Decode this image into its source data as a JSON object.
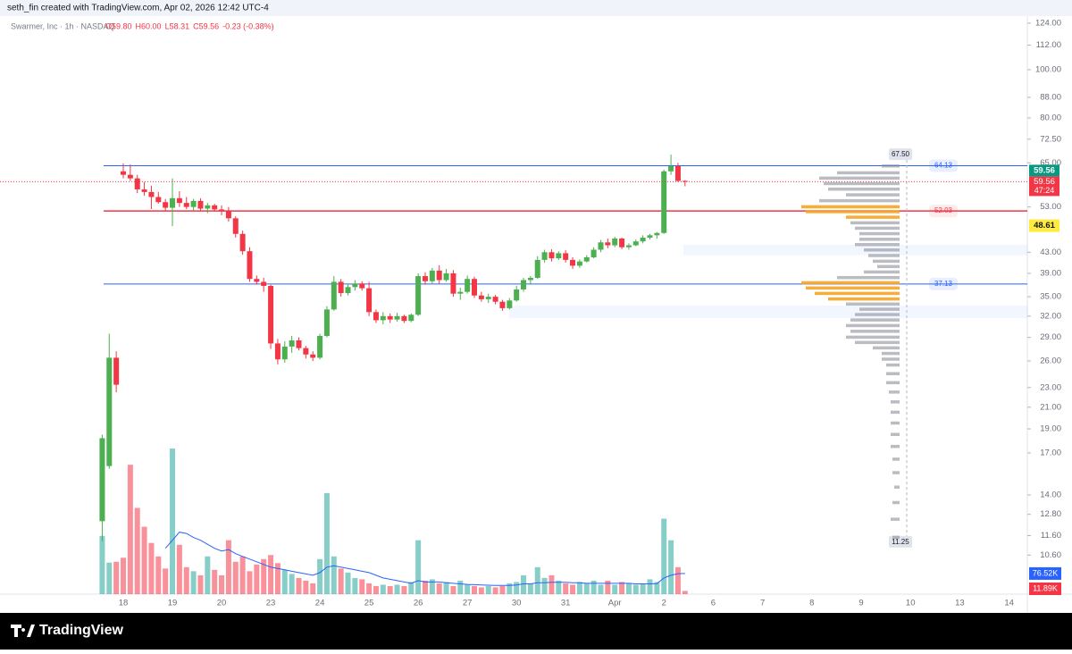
{
  "header": "seth_fin created with TradingView.com, Apr 02, 2026 12:42 UTC-4",
  "footer": "TradingView",
  "chart_data": {
    "type": "candlestick",
    "symbol": "Swarmer, Inc · 1h · NASDAQ",
    "legend_values": [
      "O59.80",
      "H60.00",
      "L58.31",
      "C59.56",
      "-0.23 (-0.38%)"
    ],
    "categories": [
      null,
      null,
      null,
      "18",
      null,
      null,
      null,
      null,
      null,
      null,
      "19",
      null,
      null,
      null,
      null,
      null,
      null,
      "20",
      null,
      null,
      null,
      null,
      null,
      null,
      "23",
      null,
      null,
      null,
      null,
      null,
      null,
      "24",
      null,
      null,
      null,
      null,
      null,
      null,
      "25",
      null,
      null,
      null,
      null,
      null,
      null,
      "26",
      null,
      null,
      null,
      null,
      null,
      null,
      "27",
      null,
      null,
      null,
      null,
      null,
      null,
      "30",
      null,
      null,
      null,
      null,
      null,
      null,
      "31",
      null,
      null,
      null,
      null,
      null,
      null,
      "Apr",
      null,
      null,
      null,
      null,
      null,
      null,
      "2",
      null,
      null,
      null
    ],
    "future_labels": [
      "6",
      "7",
      "8",
      "9",
      "10",
      "13",
      "14"
    ],
    "open": [
      12.4,
      16,
      26.4,
      62.5,
      61.5,
      60.5,
      57.5,
      56.8,
      55.5,
      54.2,
      52.8,
      55.2,
      54,
      53,
      54.5,
      52.6,
      53.4,
      52.4,
      52,
      50.3,
      46.8,
      43.2,
      38,
      37.5,
      36.8,
      28.2,
      26.2,
      27.8,
      28.6,
      27.6,
      26.8,
      26.4,
      29.2,
      33,
      37.5,
      35.6,
      36.6,
      37.2,
      36.4,
      32.6,
      31.4,
      32,
      31.5,
      32,
      31.3,
      32.2,
      38.5,
      37.6,
      39.5,
      37.8,
      39,
      35.5,
      35.8,
      38,
      35.2,
      34.6,
      35,
      34.2,
      33.2,
      34.4,
      36.2,
      37.8,
      38.2,
      41.5,
      43,
      41.8,
      42.8,
      41.5,
      40.4,
      41.2,
      42,
      43.5,
      45,
      44.4,
      45.8,
      44,
      44.4,
      45.2,
      46,
      46.5,
      47,
      62.5,
      64,
      59.8
    ],
    "high": [
      18.5,
      29.5,
      27.2,
      64.8,
      64.5,
      61.5,
      59.5,
      58.5,
      56.8,
      55,
      60.5,
      57,
      55.5,
      55,
      55.2,
      54,
      53.8,
      53.4,
      53,
      50.8,
      47.5,
      44,
      38.6,
      38.2,
      37,
      28.8,
      28.5,
      29.2,
      29,
      27.9,
      27.2,
      29.5,
      33.5,
      38.5,
      38,
      37.2,
      37.8,
      37.6,
      37.5,
      33,
      32.6,
      32.4,
      32.5,
      32.2,
      32.4,
      39,
      39.2,
      40,
      40.5,
      39.8,
      39.6,
      36.5,
      38.6,
      38.4,
      35.8,
      35.5,
      35.3,
      34.5,
      34.8,
      36.8,
      38.2,
      38.5,
      42.2,
      43.5,
      43.6,
      43.2,
      43.4,
      42,
      41.6,
      42.4,
      44,
      45.5,
      45.8,
      46.2,
      46,
      44.8,
      45.6,
      46.5,
      46.8,
      47.2,
      63,
      67.5,
      65,
      60
    ],
    "low": [
      11.3,
      15.8,
      22.5,
      60.5,
      59.8,
      56.5,
      55.8,
      52.5,
      53.8,
      52,
      48.5,
      53,
      52.5,
      52.2,
      52,
      51.5,
      52,
      51,
      49.5,
      46,
      42.5,
      37.5,
      37,
      35.8,
      27.5,
      25.6,
      25.8,
      27,
      27.3,
      26.3,
      26,
      26.2,
      29,
      32.8,
      35,
      35.2,
      36,
      36,
      32,
      31,
      30.8,
      31,
      31.2,
      31,
      31.1,
      32,
      37,
      37.2,
      37.2,
      37.5,
      35,
      34.5,
      35.5,
      34.8,
      34.2,
      34,
      33.8,
      32.8,
      33,
      34.2,
      35.8,
      37,
      38,
      41,
      41.2,
      41.5,
      41,
      39.8,
      40,
      41,
      41.8,
      43,
      43.8,
      44,
      43.6,
      43.5,
      44.2,
      44.8,
      45.6,
      45.8,
      46.8,
      61.5,
      59.5,
      58.31
    ],
    "close": [
      18.2,
      26.4,
      23.3,
      61.5,
      60.5,
      57.5,
      56.8,
      55.5,
      54.2,
      52.8,
      55.2,
      54,
      53,
      54.5,
      52.6,
      53.4,
      52.4,
      52,
      50.3,
      46.8,
      43.2,
      38,
      37.5,
      36.8,
      28.2,
      26.2,
      27.8,
      28.6,
      27.6,
      26.8,
      26.4,
      29.2,
      33,
      37.5,
      35.6,
      36.6,
      37.2,
      36.4,
      32.6,
      31.4,
      32,
      31.5,
      32,
      31.3,
      32.2,
      38.5,
      37.6,
      39.5,
      37.8,
      39,
      35.5,
      35.8,
      38,
      35.2,
      34.6,
      35,
      34.2,
      33.2,
      34.4,
      36.2,
      37.8,
      38.2,
      41.5,
      43,
      41.8,
      42.8,
      41.5,
      40.4,
      41.2,
      42,
      43.5,
      45,
      44.4,
      45.8,
      44,
      44.4,
      45.2,
      46,
      46.5,
      47,
      62.5,
      64,
      59.79,
      59.56
    ],
    "volume": [
      216,
      117,
      120,
      135,
      480,
      320,
      250,
      190,
      140,
      95,
      540,
      183,
      100,
      85,
      70,
      140,
      90,
      70,
      200,
      120,
      140,
      85,
      110,
      130,
      145,
      115,
      90,
      75,
      60,
      50,
      40,
      130,
      375,
      140,
      95,
      80,
      60,
      55,
      40,
      30,
      35,
      30,
      35,
      30,
      45,
      200,
      50,
      55,
      40,
      45,
      30,
      50,
      35,
      30,
      25,
      30,
      25,
      30,
      40,
      45,
      70,
      40,
      100,
      60,
      70,
      50,
      40,
      35,
      45,
      40,
      50,
      35,
      50,
      35,
      45,
      40,
      35,
      40,
      55,
      45,
      280,
      200,
      100,
      11.89
    ],
    "volume_ma": [
      null,
      null,
      null,
      null,
      null,
      null,
      null,
      null,
      null,
      170,
      200,
      230,
      225,
      210,
      200,
      185,
      170,
      160,
      165,
      150,
      140,
      130,
      120,
      110,
      100,
      95,
      90,
      85,
      80,
      75,
      70,
      80,
      100,
      105,
      100,
      95,
      90,
      85,
      80,
      70,
      60,
      55,
      50,
      45,
      40,
      50,
      45,
      45,
      45,
      42,
      40,
      38,
      36,
      35,
      34,
      33,
      32,
      32,
      32,
      34,
      38,
      38,
      42,
      42,
      44,
      44,
      44,
      42,
      42,
      40,
      40,
      40,
      40,
      40,
      40,
      40,
      38,
      38,
      38,
      39,
      60,
      70,
      76,
      76.52
    ],
    "volume_ylim": [
      0,
      580
    ],
    "volume_tags": [
      {
        "value": 76.52,
        "label": "76.52K"
      },
      {
        "value": 11.89,
        "label": "11.89K"
      }
    ],
    "ylim": [
      8.85,
      128.1
    ],
    "log_scale": true,
    "yticks": [
      {
        "value": 124,
        "label": "124.00"
      },
      {
        "value": 112,
        "label": "112.00"
      },
      {
        "value": 100,
        "label": "100.00"
      },
      {
        "value": 88,
        "label": "88.00"
      },
      {
        "value": 80,
        "label": "80.00"
      },
      {
        "value": 72.5,
        "label": "72.50"
      },
      {
        "value": 65,
        "label": "65.00"
      },
      {
        "value": 53,
        "label": "53.00"
      },
      {
        "value": 43,
        "label": "43.00"
      },
      {
        "value": 39,
        "label": "39.00"
      },
      {
        "value": 35,
        "label": "35.00"
      },
      {
        "value": 32,
        "label": "32.00"
      },
      {
        "value": 29,
        "label": "29.00"
      },
      {
        "value": 26,
        "label": "26.00"
      },
      {
        "value": 23,
        "label": "23.00"
      },
      {
        "value": 21,
        "label": "21.00"
      },
      {
        "value": 19,
        "label": "19.00"
      },
      {
        "value": 17,
        "label": "17.00"
      },
      {
        "value": 14,
        "label": "14.00"
      },
      {
        "value": 12.8,
        "label": "12.80"
      },
      {
        "value": 11.6,
        "label": "11.60"
      },
      {
        "value": 10.6,
        "label": "10.60"
      }
    ],
    "up_color": "#4caf50",
    "down_color": "#f23645",
    "levels": [
      {
        "value": 64.13,
        "color": "#2962ff"
      },
      {
        "value": 52.03,
        "color": "#f23645"
      },
      {
        "value": 37.13,
        "color": "#2962ff"
      }
    ],
    "countdown": "47:24",
    "indicator_tag": 48.61,
    "zones": [
      [
        42.4,
        44.5
      ],
      [
        31.7,
        33.6
      ]
    ],
    "profile_range": [
      {
        "value": 67.5,
        "label": "67.50"
      },
      11.25
    ],
    "profile_prices": [
      64,
      62,
      60.5,
      59,
      57.5,
      56,
      54.5,
      53,
      51.8,
      50.5,
      49.2,
      48,
      46.8,
      45.6,
      44.5,
      43.4,
      42.3,
      41.2,
      40.2,
      39.2,
      38.2,
      37.3,
      36.4,
      35.5,
      34.6,
      33.8,
      33,
      32.2,
      31.4,
      30.6,
      29.8,
      29,
      28.3,
      27.6,
      26.9,
      26.2,
      25.5,
      24.5,
      23.5,
      22.5,
      21.5,
      20.5,
      19.5,
      18.5,
      17.5,
      16.5,
      15.5,
      14.5,
      13.5,
      12.5,
      11.5
    ],
    "profile_values": [
      20,
      70,
      90,
      85,
      80,
      60,
      90,
      110,
      105,
      60,
      55,
      50,
      45,
      45,
      50,
      40,
      35,
      30,
      25,
      40,
      70,
      110,
      105,
      95,
      80,
      60,
      45,
      50,
      55,
      60,
      55,
      60,
      50,
      30,
      20,
      20,
      15,
      15,
      15,
      12,
      10,
      10,
      10,
      10,
      10,
      8,
      8,
      6,
      8,
      10,
      8
    ],
    "profile_highlight": [
      [
        50.5,
        54
      ],
      [
        34.5,
        38
      ]
    ]
  }
}
